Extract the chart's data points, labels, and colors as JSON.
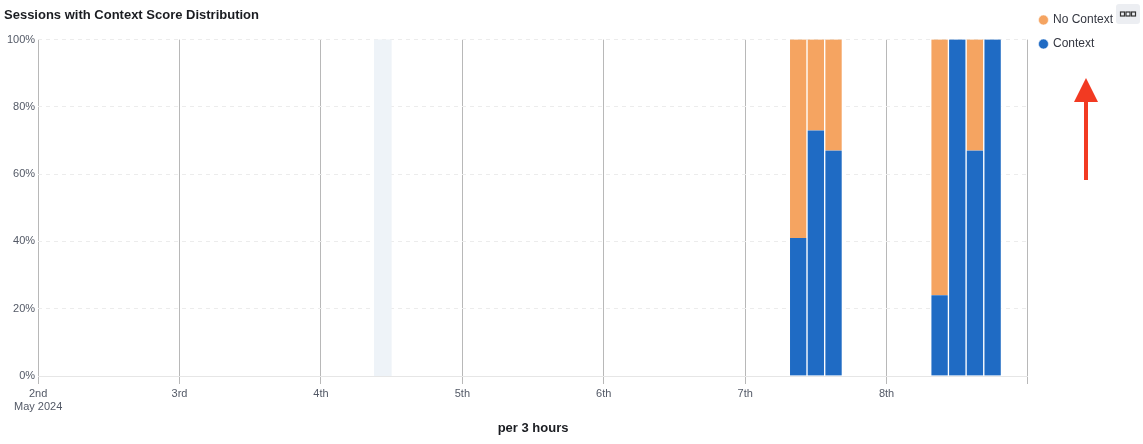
{
  "chart_data": {
    "type": "bar",
    "title": "Sessions with Context Score Distribution",
    "xlabel": "per 3 hours",
    "x": [
      "2024-05-07T09:00",
      "2024-05-07T12:00",
      "2024-05-07T15:00",
      "2024-05-08T09:00",
      "2024-05-08T12:00",
      "2024-05-08T15:00",
      "2024-05-08T18:00"
    ],
    "series": [
      {
        "name": "Context",
        "color": "#1f6bc4",
        "values": [
          41,
          73,
          67,
          24,
          100,
          67,
          100
        ]
      },
      {
        "name": "No Context",
        "color": "#f5a461",
        "values": [
          59,
          27,
          33,
          76,
          0,
          33,
          0
        ]
      }
    ],
    "stacked": true,
    "xlim": [
      "2024-05-02",
      "2024-05-09"
    ],
    "xticks": [
      {
        "value": "2024-05-02",
        "label": "2nd\nMay 2024"
      },
      {
        "value": "2024-05-03",
        "label": "3rd"
      },
      {
        "value": "2024-05-04",
        "label": "4th"
      },
      {
        "value": "2024-05-05",
        "label": "5th"
      },
      {
        "value": "2024-05-06",
        "label": "6th"
      },
      {
        "value": "2024-05-07",
        "label": "7th"
      },
      {
        "value": "2024-05-08",
        "label": "8th"
      },
      {
        "value": "2024-05-09",
        "label": null
      }
    ],
    "ylim": [
      0,
      100
    ],
    "yticks": [
      {
        "value": 0,
        "label": "0%"
      },
      {
        "value": 20,
        "label": "20%"
      },
      {
        "value": 40,
        "label": "40%"
      },
      {
        "value": 60,
        "label": "60%"
      },
      {
        "value": 80,
        "label": "80%"
      },
      {
        "value": 100,
        "label": "100%"
      }
    ],
    "bands": [
      {
        "axis": "x",
        "from": "2024-05-04T09:00",
        "to": "2024-05-04T12:00",
        "color": "#eef3f8"
      }
    ],
    "grid": true,
    "legend": "top right"
  }
}
